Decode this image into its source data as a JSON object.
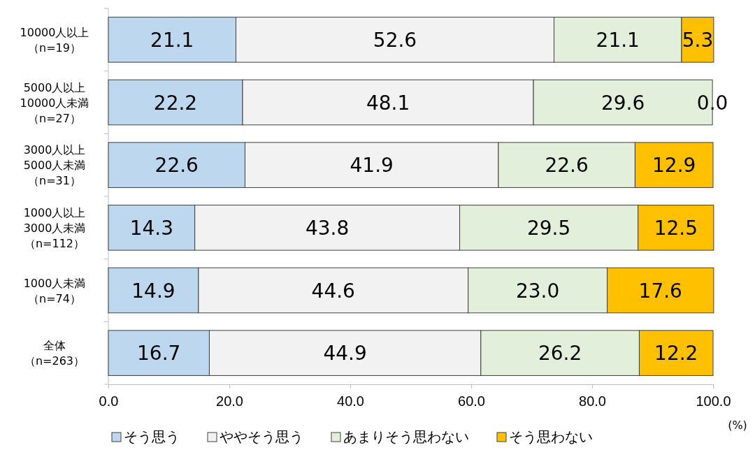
{
  "chart_data": {
    "type": "bar",
    "orientation": "horizontal",
    "stacked": true,
    "categories": [
      "10000人以上（n=19）",
      "5000人以上10000人未満（n=27）",
      "3000人以上5000人未満（n=31）",
      "1000人以上3000人未満（n=112）",
      "1000人未満（n=74）",
      "全体（n=263）"
    ],
    "series": [
      {
        "name": "そう思う",
        "color": "#bdd7ee",
        "values": [
          21.1,
          22.2,
          22.6,
          14.3,
          14.9,
          16.7
        ],
        "value_labels": [
          "21.1",
          "22.2",
          "22.6",
          "14.3",
          "14.9",
          "16.7"
        ]
      },
      {
        "name": "ややそう思う",
        "color": "#f2f2f2",
        "values": [
          52.6,
          48.1,
          41.9,
          43.8,
          44.6,
          44.9
        ],
        "value_labels": [
          "52.6",
          "48.1",
          "41.9",
          "43.8",
          "44.6",
          "44.9"
        ]
      },
      {
        "name": "あまりそう思わない",
        "color": "#e2efda",
        "values": [
          21.1,
          29.6,
          22.6,
          29.5,
          23.0,
          26.2
        ],
        "value_labels": [
          "21.1",
          "29.6",
          "22.6",
          "29.5",
          "23.0",
          "26.2"
        ]
      },
      {
        "name": "そう思わない",
        "color": "#ffc000",
        "values": [
          5.3,
          0.0,
          12.9,
          12.5,
          17.6,
          12.2
        ],
        "value_labels": [
          "5.3",
          "0.0",
          "12.9",
          "12.5",
          "17.6",
          "12.2"
        ]
      }
    ],
    "xlim": [
      0,
      100
    ],
    "xticks": [
      {
        "value": 0,
        "label": "0.0"
      },
      {
        "value": 20,
        "label": "20.0"
      },
      {
        "value": 40,
        "label": "40.0"
      },
      {
        "value": 60,
        "label": "60.0"
      },
      {
        "value": 80,
        "label": "80.0"
      },
      {
        "value": 100,
        "label": "100.0"
      }
    ],
    "grid": false,
    "legend": "bottom",
    "annotations": [
      "(%)"
    ]
  }
}
